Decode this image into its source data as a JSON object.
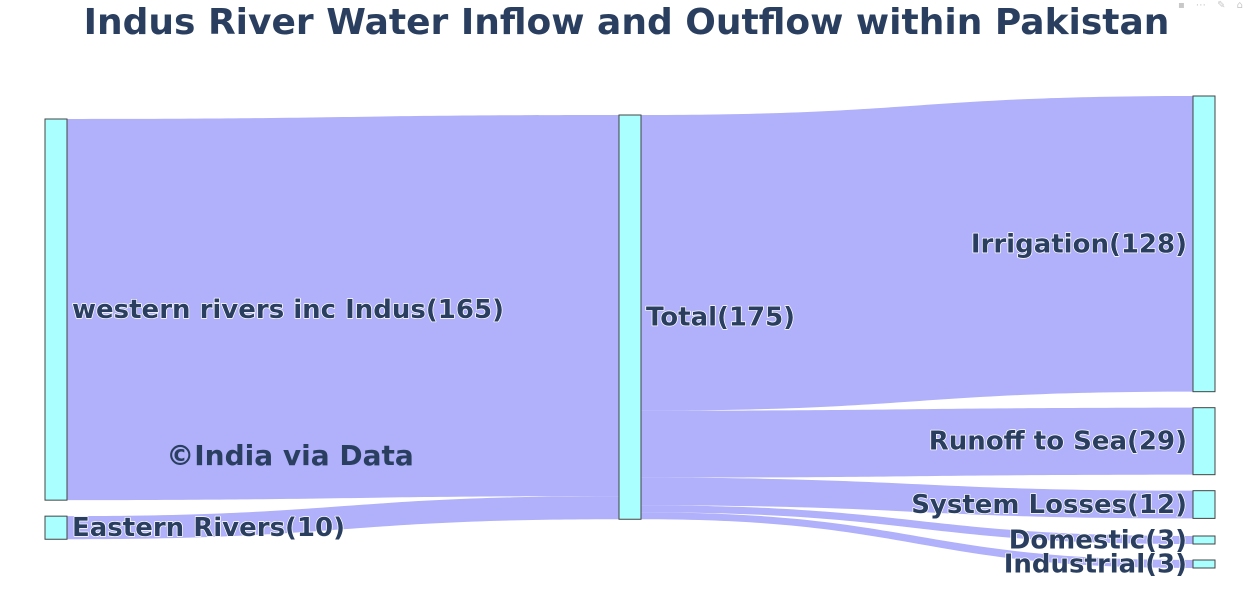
{
  "title": "Indus River Water Inflow and Outflow within Pakistan",
  "watermark": "©India via Data",
  "colors": {
    "node_fill": "#aaffff",
    "node_stroke": "#444444",
    "link": "#b0b0fb",
    "title": "#2a3f5f"
  },
  "chart_data": {
    "type": "sankey",
    "title": "Indus River Water Inflow and Outflow within Pakistan",
    "nodes": [
      {
        "id": "western",
        "label": "western rivers inc Indus(165)",
        "value": 165,
        "column": 0
      },
      {
        "id": "eastern",
        "label": "Eastern Rivers(10)",
        "value": 10,
        "column": 0
      },
      {
        "id": "total",
        "label": "Total(175)",
        "value": 175,
        "column": 1
      },
      {
        "id": "irrigation",
        "label": "Irrigation(128)",
        "value": 128,
        "column": 2
      },
      {
        "id": "runoff",
        "label": "Runoff to Sea(29)",
        "value": 29,
        "column": 2
      },
      {
        "id": "losses",
        "label": "System Losses(12)",
        "value": 12,
        "column": 2
      },
      {
        "id": "domestic",
        "label": "Domestic(3)",
        "value": 3,
        "column": 2
      },
      {
        "id": "industrial",
        "label": "Industrial(3)",
        "value": 3,
        "column": 2
      }
    ],
    "links": [
      {
        "source": "western",
        "target": "total",
        "value": 165
      },
      {
        "source": "eastern",
        "target": "total",
        "value": 10
      },
      {
        "source": "total",
        "target": "irrigation",
        "value": 128
      },
      {
        "source": "total",
        "target": "runoff",
        "value": 29
      },
      {
        "source": "total",
        "target": "losses",
        "value": 12
      },
      {
        "source": "total",
        "target": "domestic",
        "value": 3
      },
      {
        "source": "total",
        "target": "industrial",
        "value": 3
      }
    ]
  }
}
